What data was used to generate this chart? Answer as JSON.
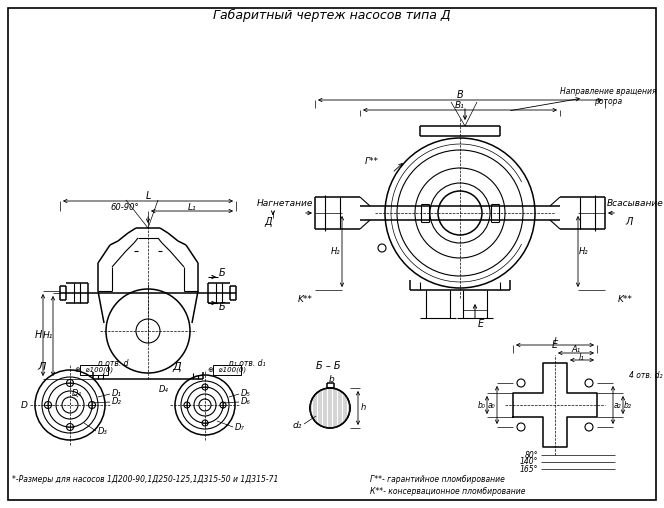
{
  "title": "Габаритный чертеж насосов типа Д",
  "bg_color": "#ffffff",
  "line_color": "#000000",
  "footnote1": "*-Размеры для насосов 1Д200-90,1Д250-125,1Д315-50 и 1Д315-71",
  "footnote2": "Г**- гарантийное пломбирование",
  "footnote3": "К**- консервационное пломбирование"
}
